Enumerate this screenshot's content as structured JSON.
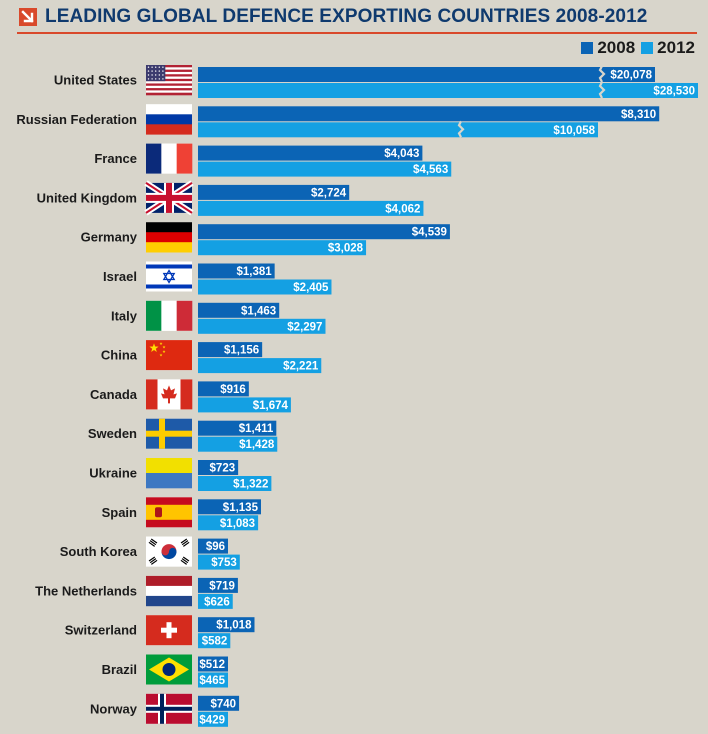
{
  "chart_data": {
    "type": "bar",
    "orientation": "horizontal",
    "title": "LEADING GLOBAL DEFENCE EXPORTING COUNTRIES 2008-2012",
    "legend_position": "top-right",
    "grid": false,
    "axis_break": true,
    "categories": [
      "United States",
      "Russian Federation",
      "France",
      "United Kingdom",
      "Germany",
      "Israel",
      "Italy",
      "China",
      "Canada",
      "Sweden",
      "Ukraine",
      "Spain",
      "South Korea",
      "The Netherlands",
      "Switzerland",
      "Brazil",
      "Norway"
    ],
    "series": [
      {
        "name": "2008",
        "color": "#0b64b5",
        "values": [
          20078,
          8310,
          4043,
          2724,
          4539,
          1381,
          1463,
          1156,
          916,
          1411,
          723,
          1135,
          96,
          719,
          1018,
          512,
          740
        ],
        "labels": [
          "$20,078",
          "$8,310",
          "$4,043",
          "$2,724",
          "$4,539",
          "$1,381",
          "$1,463",
          "$1,156",
          "$916",
          "$1,411",
          "$723",
          "$1,135",
          "$96",
          "$719",
          "$1,018",
          "$512",
          "$740"
        ]
      },
      {
        "name": "2012",
        "color": "#14a0e3",
        "values": [
          28530,
          10058,
          4563,
          4062,
          3028,
          2405,
          2297,
          2221,
          1674,
          1428,
          1322,
          1083,
          753,
          626,
          582,
          465,
          429
        ],
        "labels": [
          "$28,530",
          "$10,058",
          "$4,563",
          "$4,062",
          "$3,028",
          "$2,405",
          "$2,297",
          "$2,221",
          "$1,674",
          "$1,428",
          "$1,322",
          "$1,083",
          "$753",
          "$626",
          "$582",
          "$465",
          "$429"
        ]
      }
    ]
  },
  "flags": [
    "us-flag-icon",
    "russia-flag-icon",
    "france-flag-icon",
    "uk-flag-icon",
    "germany-flag-icon",
    "israel-flag-icon",
    "italy-flag-icon",
    "china-flag-icon",
    "canada-flag-icon",
    "sweden-flag-icon",
    "ukraine-flag-icon",
    "spain-flag-icon",
    "south-korea-flag-icon",
    "netherlands-flag-icon",
    "switzerland-flag-icon",
    "brazil-flag-icon",
    "norway-flag-icon"
  ],
  "colors": {
    "background": "#d8d5cb",
    "title": "#0f3a6e",
    "accent": "#d9492b",
    "series_2008": "#0b64b5",
    "series_2012": "#14a0e3"
  }
}
